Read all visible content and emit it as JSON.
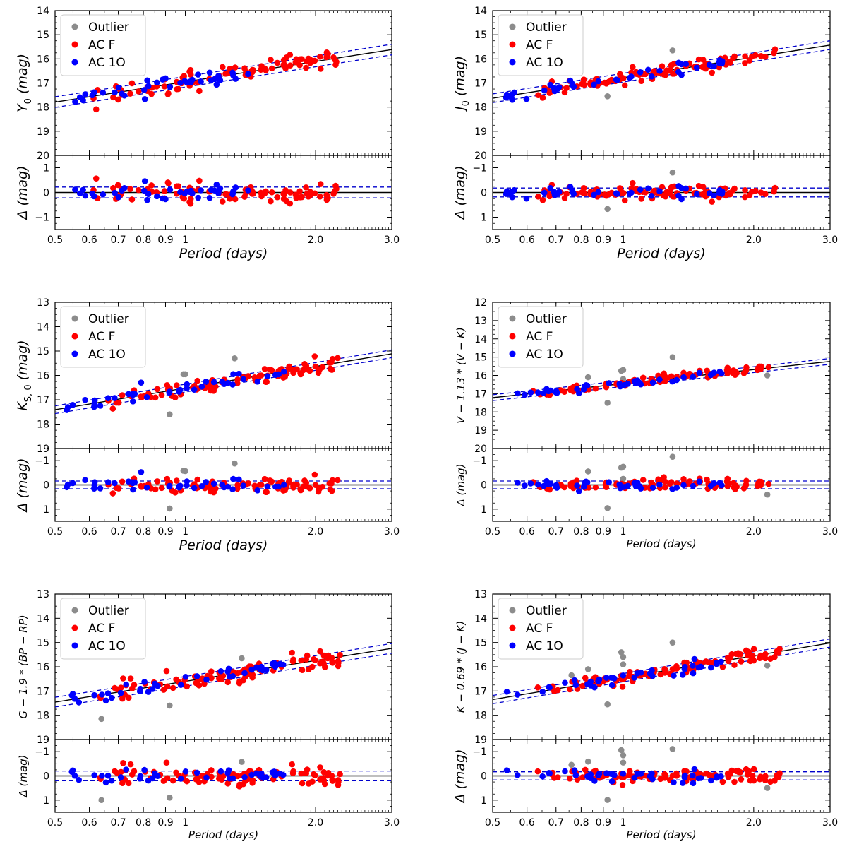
{
  "colors": {
    "outlier": "#8c8c8c",
    "ac_f": "#ff0000",
    "ac_1o": "#0000ff",
    "fit_line": "#000000",
    "scatter_band": "#0000cc"
  },
  "legend": [
    "Outlier",
    "AC F",
    "AC 1O"
  ],
  "x_tick_labels": [
    "0.5",
    "0.6",
    "0.7",
    "0.8",
    "0.9",
    "1",
    "2.0",
    "3.0"
  ],
  "chart_data": [
    {
      "type": "scatter",
      "xlabel": "Period (days)",
      "ylabel": "Y0 (mag)",
      "ylabel_main": "Y",
      "ylabel_sub": "0",
      "ylabel_unit": "(mag)",
      "residual_label": "Δ (mag)",
      "xscale": "log",
      "xlim": [
        0.5,
        3.0
      ],
      "ylim": [
        20,
        14
      ],
      "yticks": [
        "14",
        "15",
        "16",
        "17",
        "18",
        "19",
        "20"
      ],
      "rlim": [
        1.5,
        -1.5
      ],
      "rticks": [
        "−1",
        "0",
        "1"
      ],
      "legend_position": "top-left",
      "fit": {
        "intercept": 16.95,
        "slope": -2.8
      },
      "band": 0.22,
      "series": [
        {
          "name": "AC F",
          "seed": 11,
          "n": 95,
          "xrange": [
            0.6,
            2.3
          ],
          "sigma": 0.2,
          "outliers": []
        },
        {
          "name": "AC 1O",
          "seed": 12,
          "n": 40,
          "xrange": [
            0.53,
            1.4
          ],
          "sigma": 0.15,
          "outliers": []
        }
      ],
      "outliers": []
    },
    {
      "type": "scatter",
      "xlabel": "Period (days)",
      "ylabel": "J0 (mag)",
      "ylabel_main": "J",
      "ylabel_sub": "0",
      "ylabel_unit": "(mag)",
      "residual_label": "Δ (mag)",
      "xscale": "log",
      "xlim": [
        0.5,
        3.0
      ],
      "ylim": [
        20,
        14
      ],
      "yticks": [
        "14",
        "15",
        "16",
        "17",
        "18",
        "19",
        "20"
      ],
      "rlim": [
        -1.5,
        1.5
      ],
      "rticks": [
        "−1",
        "0",
        "1"
      ],
      "legend_position": "top-left",
      "fit": {
        "intercept": 16.78,
        "slope": -2.83
      },
      "band": 0.18,
      "series": [
        {
          "name": "AC F",
          "seed": 21,
          "n": 95,
          "xrange": [
            0.62,
            2.3
          ],
          "sigma": 0.16
        },
        {
          "name": "AC 1O",
          "seed": 22,
          "n": 40,
          "xrange": [
            0.53,
            1.7
          ],
          "sigma": 0.12
        }
      ],
      "outliers": [
        [
          0.92,
          17.55
        ],
        [
          1.3,
          15.65
        ]
      ]
    },
    {
      "type": "scatter",
      "xlabel": "Period (days)",
      "ylabel": "KS,0 (mag)",
      "ylabel_main": "K",
      "ylabel_sub": "S, 0",
      "ylabel_unit": "(mag)",
      "residual_label": "Δ (mag)",
      "xscale": "log",
      "xlim": [
        0.5,
        3.0
      ],
      "ylim": [
        19,
        13
      ],
      "yticks": [
        "13",
        "14",
        "15",
        "16",
        "17",
        "18",
        "19"
      ],
      "rlim": [
        -1.5,
        1.5
      ],
      "rticks": [
        "−1",
        "0",
        "1"
      ],
      "legend_position": "top-left",
      "fit": {
        "intercept": 16.52,
        "slope": -2.95
      },
      "band": 0.16,
      "series": [
        {
          "name": "AC F",
          "seed": 31,
          "n": 95,
          "xrange": [
            0.62,
            2.3
          ],
          "sigma": 0.14
        },
        {
          "name": "AC 1O",
          "seed": 32,
          "n": 40,
          "xrange": [
            0.53,
            1.7
          ],
          "sigma": 0.12
        }
      ],
      "outliers": [
        [
          0.92,
          17.6
        ],
        [
          0.99,
          15.95
        ],
        [
          1.0,
          15.95
        ],
        [
          1.3,
          15.3
        ]
      ]
    },
    {
      "type": "scatter",
      "xlabel": "Period (days)",
      "ylabel": "V − 1.13 * (V − K)",
      "ylabel_main": "V − 1.13 * (V − K)",
      "ylabel_sub": "",
      "ylabel_unit": "",
      "residual_label": "Δ (mag)",
      "xscale": "log",
      "xlim": [
        0.5,
        3.0
      ],
      "ylim": [
        20,
        12
      ],
      "yticks": [
        "12",
        "13",
        "14",
        "15",
        "16",
        "17",
        "18",
        "19",
        "20"
      ],
      "rlim": [
        -1.5,
        1.5
      ],
      "rticks": [
        "−1",
        "0",
        "1"
      ],
      "legend_position": "top-left",
      "fit": {
        "intercept": 16.45,
        "slope": -2.55
      },
      "band": 0.16,
      "series": [
        {
          "name": "AC F",
          "seed": 41,
          "n": 95,
          "xrange": [
            0.62,
            2.3
          ],
          "sigma": 0.13
        },
        {
          "name": "AC 1O",
          "seed": 42,
          "n": 40,
          "xrange": [
            0.53,
            1.7
          ],
          "sigma": 0.1
        }
      ],
      "outliers": [
        [
          0.83,
          16.1
        ],
        [
          0.92,
          17.5
        ],
        [
          0.99,
          15.75
        ],
        [
          1.0,
          15.7
        ],
        [
          1.0,
          16.2
        ],
        [
          1.3,
          15.0
        ],
        [
          2.15,
          16.0
        ]
      ]
    },
    {
      "type": "scatter",
      "xlabel": "Period (days)",
      "ylabel": "G − 1.9 * (BP − RP)",
      "ylabel_main": "G − 1.9 * (BP − RP)",
      "ylabel_sub": "",
      "ylabel_unit": "",
      "residual_label": "Δ (mag)",
      "xscale": "log",
      "xlim": [
        0.5,
        3.0
      ],
      "ylim": [
        19,
        13
      ],
      "yticks": [
        "13",
        "14",
        "15",
        "16",
        "17",
        "18",
        "19"
      ],
      "rlim": [
        -1.5,
        1.5
      ],
      "rticks": [
        "−1",
        "0",
        "1"
      ],
      "legend_position": "top-left",
      "fit": {
        "intercept": 16.6,
        "slope": -2.85
      },
      "band": 0.2,
      "series": [
        {
          "name": "AC F",
          "seed": 51,
          "n": 95,
          "xrange": [
            0.62,
            2.3
          ],
          "sigma": 0.2
        },
        {
          "name": "AC 1O",
          "seed": 52,
          "n": 40,
          "xrange": [
            0.53,
            1.7
          ],
          "sigma": 0.15
        }
      ],
      "outliers": [
        [
          0.64,
          18.15
        ],
        [
          0.92,
          17.6
        ],
        [
          1.35,
          15.65
        ]
      ]
    },
    {
      "type": "scatter",
      "xlabel": "Period (days)",
      "ylabel": "K − 0.69 * (J − K)",
      "ylabel_main": "K − 0.69 * (J − K)",
      "ylabel_sub": "",
      "ylabel_unit": "",
      "residual_label": "Δ (mag)",
      "xscale": "log",
      "xlim": [
        0.5,
        3.0
      ],
      "ylim": [
        19,
        13
      ],
      "yticks": [
        "13",
        "14",
        "15",
        "16",
        "17",
        "18",
        "19"
      ],
      "rlim": [
        -1.5,
        1.5
      ],
      "rticks": [
        "−1",
        "0",
        "1"
      ],
      "legend_position": "top-left",
      "fit": {
        "intercept": 16.45,
        "slope": -3.0
      },
      "band": 0.17,
      "series": [
        {
          "name": "AC F",
          "seed": 61,
          "n": 95,
          "xrange": [
            0.62,
            2.3
          ],
          "sigma": 0.14
        },
        {
          "name": "AC 1O",
          "seed": 62,
          "n": 40,
          "xrange": [
            0.53,
            1.7
          ],
          "sigma": 0.12
        }
      ],
      "outliers": [
        [
          0.76,
          16.35
        ],
        [
          0.83,
          16.1
        ],
        [
          0.92,
          17.55
        ],
        [
          0.99,
          15.4
        ],
        [
          1.0,
          15.6
        ],
        [
          1.0,
          15.9
        ],
        [
          1.3,
          15.0
        ],
        [
          2.15,
          15.95
        ]
      ]
    }
  ]
}
